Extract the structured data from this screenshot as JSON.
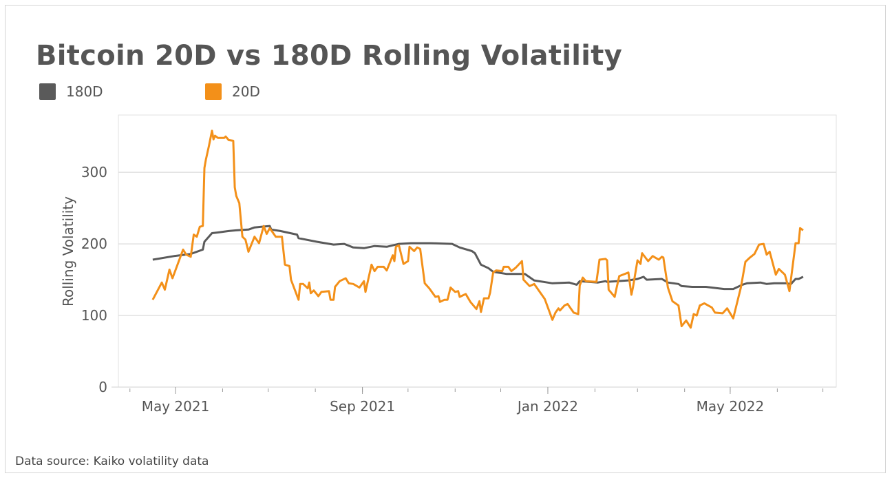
{
  "chart_data": {
    "type": "line",
    "title": "Bitcoin 20D vs 180D Rolling Volatility",
    "ylabel": "Rolling Volatility",
    "xlabel": "",
    "ylim": [
      0,
      380
    ],
    "yticks": [
      0,
      100,
      200,
      300
    ],
    "xticks": [
      {
        "date": "2021-05-01",
        "label": "May 2021"
      },
      {
        "date": "2021-09-01",
        "label": "Sep 2021"
      },
      {
        "date": "2022-01-01",
        "label": "Jan 2022"
      },
      {
        "date": "2022-05-01",
        "label": "May 2022"
      }
    ],
    "grid": "horizontal",
    "legend": "top-left",
    "source": "Data source: Kaiko volatility data",
    "series": [
      {
        "name": "180D",
        "color": "#5a5a5a",
        "points": [
          [
            "2021-04-16",
            178
          ],
          [
            "2021-04-30",
            183
          ],
          [
            "2021-05-11",
            186
          ],
          [
            "2021-05-19",
            192
          ],
          [
            "2021-05-20",
            203
          ],
          [
            "2021-05-25",
            215
          ],
          [
            "2021-05-29",
            216
          ],
          [
            "2021-06-05",
            218
          ],
          [
            "2021-06-10",
            219
          ],
          [
            "2021-06-18",
            220
          ],
          [
            "2021-06-22",
            223
          ],
          [
            "2021-07-02",
            225
          ],
          [
            "2021-07-03",
            220
          ],
          [
            "2021-07-09",
            218
          ],
          [
            "2021-07-20",
            213
          ],
          [
            "2021-07-21",
            208
          ],
          [
            "2021-08-02",
            203
          ],
          [
            "2021-08-13",
            199
          ],
          [
            "2021-08-20",
            200
          ],
          [
            "2021-08-26",
            195
          ],
          [
            "2021-09-02",
            194
          ],
          [
            "2021-09-09",
            197
          ],
          [
            "2021-09-17",
            196
          ],
          [
            "2021-09-25",
            200
          ],
          [
            "2021-10-03",
            201
          ],
          [
            "2021-10-16",
            201
          ],
          [
            "2021-10-30",
            200
          ],
          [
            "2021-11-04",
            195
          ],
          [
            "2021-11-12",
            190
          ],
          [
            "2021-11-14",
            187
          ],
          [
            "2021-11-18",
            171
          ],
          [
            "2021-11-23",
            166
          ],
          [
            "2021-11-26",
            161
          ],
          [
            "2021-12-05",
            158
          ],
          [
            "2021-12-17",
            158
          ],
          [
            "2021-12-23",
            149
          ],
          [
            "2022-01-04",
            145
          ],
          [
            "2022-01-15",
            146
          ],
          [
            "2022-01-20",
            143
          ],
          [
            "2022-01-22",
            148
          ],
          [
            "2022-02-03",
            146
          ],
          [
            "2022-02-08",
            148
          ],
          [
            "2022-02-09",
            147
          ],
          [
            "2022-02-23",
            149
          ],
          [
            "2022-03-01",
            151
          ],
          [
            "2022-03-05",
            154
          ],
          [
            "2022-03-07",
            150
          ],
          [
            "2022-03-17",
            151
          ],
          [
            "2022-03-21",
            146
          ],
          [
            "2022-03-28",
            144
          ],
          [
            "2022-03-30",
            141
          ],
          [
            "2022-04-06",
            140
          ],
          [
            "2022-04-15",
            140
          ],
          [
            "2022-04-27",
            137
          ],
          [
            "2022-05-03",
            137
          ],
          [
            "2022-05-09",
            143
          ],
          [
            "2022-05-12",
            145
          ],
          [
            "2022-05-21",
            146
          ],
          [
            "2022-05-25",
            144
          ],
          [
            "2022-05-30",
            145
          ],
          [
            "2022-06-07",
            145
          ],
          [
            "2022-06-10",
            144
          ],
          [
            "2022-06-13",
            151
          ],
          [
            "2022-06-15",
            151
          ],
          [
            "2022-06-18",
            154
          ]
        ]
      },
      {
        "name": "20D",
        "color": "#f39019",
        "points": [
          [
            "2021-04-16",
            122
          ],
          [
            "2021-04-22",
            146
          ],
          [
            "2021-04-24",
            136
          ],
          [
            "2021-04-27",
            164
          ],
          [
            "2021-04-29",
            152
          ],
          [
            "2021-05-06",
            192
          ],
          [
            "2021-05-08",
            185
          ],
          [
            "2021-05-11",
            182
          ],
          [
            "2021-05-13",
            213
          ],
          [
            "2021-05-15",
            210
          ],
          [
            "2021-05-17",
            224
          ],
          [
            "2021-05-19",
            225
          ],
          [
            "2021-05-20",
            306
          ],
          [
            "2021-05-21",
            318
          ],
          [
            "2021-05-23",
            337
          ],
          [
            "2021-05-25",
            358
          ],
          [
            "2021-05-26",
            346
          ],
          [
            "2021-05-27",
            351
          ],
          [
            "2021-05-29",
            348
          ],
          [
            "2021-06-02",
            348
          ],
          [
            "2021-06-03",
            350
          ],
          [
            "2021-06-05",
            345
          ],
          [
            "2021-06-08",
            344
          ],
          [
            "2021-06-09",
            279
          ],
          [
            "2021-06-10",
            267
          ],
          [
            "2021-06-12",
            257
          ],
          [
            "2021-06-14",
            210
          ],
          [
            "2021-06-16",
            206
          ],
          [
            "2021-06-18",
            189
          ],
          [
            "2021-06-22",
            210
          ],
          [
            "2021-06-25",
            201
          ],
          [
            "2021-06-28",
            225
          ],
          [
            "2021-06-30",
            214
          ],
          [
            "2021-07-02",
            222
          ],
          [
            "2021-07-06",
            210
          ],
          [
            "2021-07-10",
            210
          ],
          [
            "2021-07-12",
            171
          ],
          [
            "2021-07-15",
            169
          ],
          [
            "2021-07-16",
            150
          ],
          [
            "2021-07-21",
            122
          ],
          [
            "2021-07-22",
            144
          ],
          [
            "2021-07-24",
            144
          ],
          [
            "2021-07-27",
            138
          ],
          [
            "2021-07-28",
            146
          ],
          [
            "2021-07-29",
            131
          ],
          [
            "2021-07-31",
            135
          ],
          [
            "2021-08-03",
            127
          ],
          [
            "2021-08-05",
            133
          ],
          [
            "2021-08-10",
            134
          ],
          [
            "2021-08-11",
            122
          ],
          [
            "2021-08-13",
            122
          ],
          [
            "2021-08-14",
            140
          ],
          [
            "2021-08-17",
            148
          ],
          [
            "2021-08-21",
            152
          ],
          [
            "2021-08-23",
            145
          ],
          [
            "2021-08-26",
            144
          ],
          [
            "2021-08-30",
            139
          ],
          [
            "2021-09-02",
            148
          ],
          [
            "2021-09-03",
            133
          ],
          [
            "2021-09-07",
            171
          ],
          [
            "2021-09-09",
            162
          ],
          [
            "2021-09-11",
            168
          ],
          [
            "2021-09-15",
            168
          ],
          [
            "2021-09-17",
            163
          ],
          [
            "2021-09-21",
            184
          ],
          [
            "2021-09-22",
            176
          ],
          [
            "2021-09-23",
            196
          ],
          [
            "2021-09-25",
            198
          ],
          [
            "2021-09-28",
            172
          ],
          [
            "2021-10-01",
            176
          ],
          [
            "2021-10-02",
            196
          ],
          [
            "2021-10-05",
            190
          ],
          [
            "2021-10-07",
            195
          ],
          [
            "2021-10-09",
            193
          ],
          [
            "2021-10-12",
            145
          ],
          [
            "2021-10-15",
            138
          ],
          [
            "2021-10-19",
            126
          ],
          [
            "2021-10-21",
            127
          ],
          [
            "2021-10-22",
            119
          ],
          [
            "2021-10-25",
            122
          ],
          [
            "2021-10-27",
            122
          ],
          [
            "2021-10-29",
            139
          ],
          [
            "2021-11-01",
            133
          ],
          [
            "2021-11-03",
            134
          ],
          [
            "2021-11-04",
            126
          ],
          [
            "2021-11-08",
            130
          ],
          [
            "2021-11-11",
            119
          ],
          [
            "2021-11-15",
            109
          ],
          [
            "2021-11-17",
            120
          ],
          [
            "2021-11-18",
            105
          ],
          [
            "2021-11-20",
            124
          ],
          [
            "2021-11-23",
            124
          ],
          [
            "2021-11-24",
            132
          ],
          [
            "2021-11-26",
            160
          ],
          [
            "2021-11-28",
            163
          ],
          [
            "2021-12-02",
            162
          ],
          [
            "2021-12-03",
            168
          ],
          [
            "2021-12-06",
            168
          ],
          [
            "2021-12-08",
            162
          ],
          [
            "2021-12-11",
            167
          ],
          [
            "2021-12-15",
            176
          ],
          [
            "2021-12-16",
            150
          ],
          [
            "2021-12-20",
            141
          ],
          [
            "2021-12-23",
            144
          ],
          [
            "2021-12-30",
            123
          ],
          [
            "2022-01-04",
            94
          ],
          [
            "2022-01-06",
            104
          ],
          [
            "2022-01-08",
            110
          ],
          [
            "2022-01-09",
            107
          ],
          [
            "2022-01-12",
            114
          ],
          [
            "2022-01-14",
            116
          ],
          [
            "2022-01-18",
            104
          ],
          [
            "2022-01-21",
            102
          ],
          [
            "2022-01-22",
            142
          ],
          [
            "2022-01-24",
            153
          ],
          [
            "2022-01-26",
            148
          ],
          [
            "2022-02-02",
            147
          ],
          [
            "2022-02-04",
            178
          ],
          [
            "2022-02-08",
            179
          ],
          [
            "2022-02-09",
            177
          ],
          [
            "2022-02-10",
            136
          ],
          [
            "2022-02-14",
            126
          ],
          [
            "2022-02-15",
            136
          ],
          [
            "2022-02-17",
            155
          ],
          [
            "2022-02-23",
            160
          ],
          [
            "2022-02-25",
            129
          ],
          [
            "2022-02-26",
            139
          ],
          [
            "2022-03-01",
            177
          ],
          [
            "2022-03-03",
            172
          ],
          [
            "2022-03-04",
            187
          ],
          [
            "2022-03-08",
            176
          ],
          [
            "2022-03-11",
            183
          ],
          [
            "2022-03-15",
            178
          ],
          [
            "2022-03-17",
            182
          ],
          [
            "2022-03-18",
            181
          ],
          [
            "2022-03-21",
            139
          ],
          [
            "2022-03-24",
            120
          ],
          [
            "2022-03-28",
            114
          ],
          [
            "2022-03-30",
            85
          ],
          [
            "2022-04-02",
            93
          ],
          [
            "2022-04-05",
            83
          ],
          [
            "2022-04-07",
            102
          ],
          [
            "2022-04-09",
            100
          ],
          [
            "2022-04-11",
            114
          ],
          [
            "2022-04-14",
            117
          ],
          [
            "2022-04-19",
            111
          ],
          [
            "2022-04-21",
            104
          ],
          [
            "2022-04-26",
            103
          ],
          [
            "2022-04-29",
            110
          ],
          [
            "2022-05-03",
            96
          ],
          [
            "2022-05-06",
            122
          ],
          [
            "2022-05-08",
            139
          ],
          [
            "2022-05-11",
            175
          ],
          [
            "2022-05-14",
            181
          ],
          [
            "2022-05-17",
            186
          ],
          [
            "2022-05-20",
            199
          ],
          [
            "2022-05-23",
            200
          ],
          [
            "2022-05-25",
            185
          ],
          [
            "2022-05-27",
            189
          ],
          [
            "2022-05-31",
            157
          ],
          [
            "2022-06-02",
            165
          ],
          [
            "2022-06-06",
            157
          ],
          [
            "2022-06-09",
            134
          ],
          [
            "2022-06-13",
            201
          ],
          [
            "2022-06-15",
            201
          ],
          [
            "2022-06-16",
            222
          ],
          [
            "2022-06-18",
            219
          ]
        ]
      }
    ]
  }
}
